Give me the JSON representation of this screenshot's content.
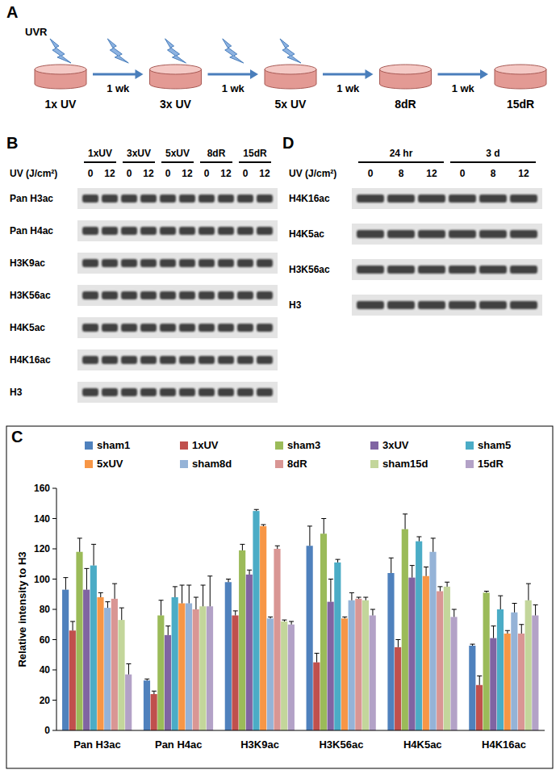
{
  "panel_a": {
    "label": "A",
    "uv_label": "UVR",
    "stages": [
      "1x UV",
      "3x UV",
      "5x UV",
      "8dR",
      "15dR"
    ],
    "intervals": [
      "1 wk",
      "1 wk",
      "1 wk",
      "1 wk"
    ]
  },
  "panel_b": {
    "label": "B",
    "groups": [
      "1xUV",
      "3xUV",
      "5xUV",
      "8dR",
      "15dR"
    ],
    "dose_label": "UV (J/cm²)",
    "doses": [
      0,
      12
    ],
    "rows": [
      "Pan H3ac",
      "Pan H4ac",
      "H3K9ac",
      "H3K56ac",
      "H4K5ac",
      "H4K16ac",
      "H3"
    ]
  },
  "panel_d": {
    "label": "D",
    "groups": [
      "24 hr",
      "3 d"
    ],
    "dose_label": "UV (J/cm²)",
    "doses": [
      0,
      8,
      12
    ],
    "rows": [
      "H4K16ac",
      "H4K5ac",
      "H3K56ac",
      "H3"
    ]
  },
  "chart_data": {
    "type": "bar",
    "label": "C",
    "categories": [
      "Pan H3ac",
      "Pan H4ac",
      "H3K9ac",
      "H3K56ac",
      "H4K5ac",
      "H4K16ac"
    ],
    "y_label": "Relative intensity to H3",
    "ylim": [
      0,
      160
    ],
    "yticks": [
      0,
      20,
      40,
      60,
      80,
      100,
      120,
      140,
      160
    ],
    "grid": false,
    "legend": "top",
    "series": [
      {
        "name": "sham1",
        "color": "#4f81bd",
        "values": [
          93,
          33,
          98,
          122,
          104,
          56
        ],
        "errors": [
          8,
          1,
          2,
          13,
          10,
          1
        ]
      },
      {
        "name": "1xUV",
        "color": "#c0504d",
        "values": [
          66,
          24,
          76,
          45,
          55,
          30
        ],
        "errors": [
          6,
          2,
          3,
          6,
          5,
          6
        ]
      },
      {
        "name": "sham3",
        "color": "#9bbb59",
        "values": [
          118,
          76,
          119,
          130,
          133,
          91
        ],
        "errors": [
          9,
          10,
          4,
          10,
          10,
          1
        ]
      },
      {
        "name": "3xUV",
        "color": "#8064a2",
        "values": [
          93,
          63,
          103,
          85,
          101,
          61
        ],
        "errors": [
          14,
          6,
          3,
          15,
          8,
          8
        ]
      },
      {
        "name": "sham5",
        "color": "#4bacc6",
        "values": [
          109,
          88,
          145,
          111,
          125,
          80
        ],
        "errors": [
          14,
          7,
          1,
          2,
          3,
          9
        ]
      },
      {
        "name": "5xUV",
        "color": "#f79646",
        "values": [
          88,
          84,
          135,
          74,
          102,
          64
        ],
        "errors": [
          3,
          12,
          1,
          1,
          6,
          2
        ]
      },
      {
        "name": "sham8d",
        "color": "#95b3d7",
        "values": [
          81,
          84,
          74,
          86,
          118,
          78
        ],
        "errors": [
          4,
          12,
          1,
          5,
          9,
          6
        ]
      },
      {
        "name": "8dR",
        "color": "#d99694",
        "values": [
          87,
          80,
          120,
          87,
          92,
          64
        ],
        "errors": [
          10,
          8,
          2,
          1,
          3,
          6
        ]
      },
      {
        "name": "sham15d",
        "color": "#c3d69b",
        "values": [
          73,
          82,
          72,
          86,
          95,
          86
        ],
        "errors": [
          8,
          14,
          1,
          2,
          3,
          11
        ]
      },
      {
        "name": "15dR",
        "color": "#b3a2c7",
        "values": [
          37,
          82,
          70,
          76,
          75,
          76
        ],
        "errors": [
          7,
          20,
          2,
          4,
          5,
          7
        ]
      }
    ]
  }
}
